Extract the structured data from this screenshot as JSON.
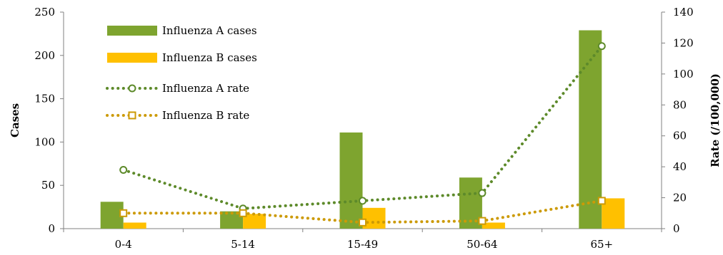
{
  "chart_data": {
    "type": "bar",
    "categories": [
      "0-4",
      "5-14",
      "15-49",
      "50-64",
      "65+"
    ],
    "series": [
      {
        "name": "Influenza A cases",
        "kind": "bar",
        "axis": "left",
        "color": "#7ea42f",
        "values": [
          31,
          20,
          111,
          59,
          229
        ]
      },
      {
        "name": "Influenza B cases",
        "kind": "bar",
        "axis": "left",
        "color": "#ffc000",
        "values": [
          7,
          17,
          24,
          7,
          35
        ]
      },
      {
        "name": "Influenza A rate",
        "kind": "line",
        "marker": "circle",
        "axis": "right",
        "color": "#5d8a2a",
        "values": [
          38,
          13,
          18,
          23,
          118
        ]
      },
      {
        "name": "Influenza B rate",
        "kind": "line",
        "marker": "square",
        "axis": "right",
        "color": "#cc9a06",
        "values": [
          10,
          10,
          4,
          5,
          18
        ]
      }
    ],
    "ylabel": "Cases",
    "y2label": "Rate (/100,000)",
    "ylim": [
      0,
      250
    ],
    "y2lim": [
      0,
      140
    ],
    "yticks": [
      0,
      50,
      100,
      150,
      200,
      250
    ],
    "y2ticks": [
      0,
      20,
      40,
      60,
      80,
      100,
      120,
      140
    ],
    "grid": false,
    "legend_position": "top-left"
  }
}
